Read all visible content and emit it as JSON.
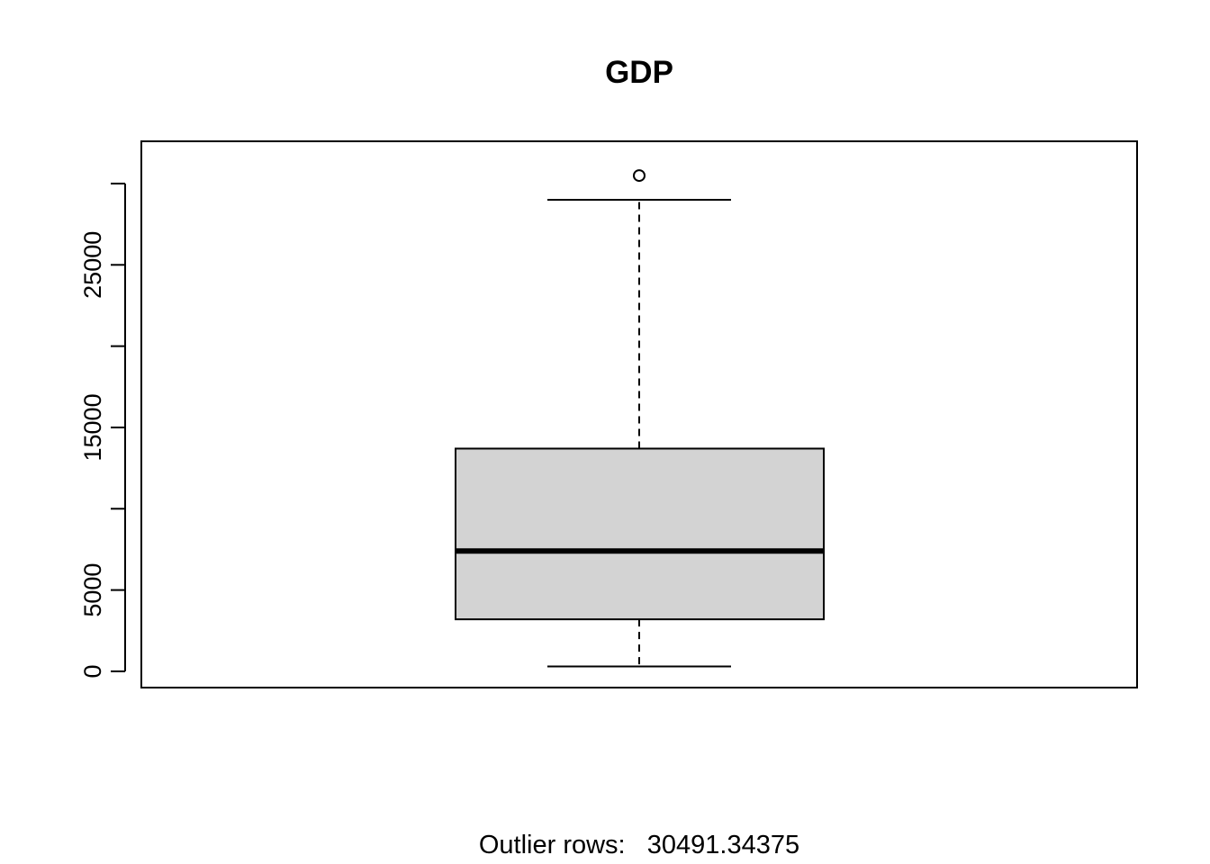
{
  "chart_data": {
    "type": "boxplot",
    "title": "GDP",
    "ylim": [
      -1000,
      32600
    ],
    "yticks": [
      0,
      5000,
      10000,
      15000,
      20000,
      25000,
      30000
    ],
    "ytick_labels": [
      "0",
      "5000",
      "",
      "15000",
      "",
      "25000",
      ""
    ],
    "box": {
      "whisker_low": 300,
      "q1": 3200,
      "median": 7400,
      "q3": 13700,
      "whisker_high": 29000,
      "outliers": [
        30491.34375
      ]
    },
    "colors": {
      "box_fill": "#d3d3d3",
      "line": "#000000"
    },
    "note": "Outlier rows:   30491.34375"
  }
}
